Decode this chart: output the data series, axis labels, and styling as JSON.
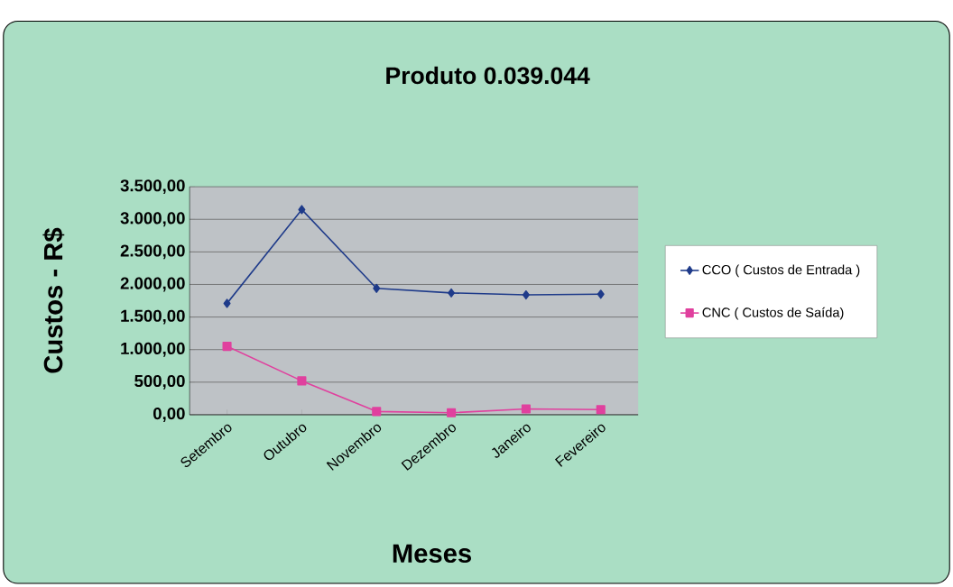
{
  "chart_data": {
    "type": "line",
    "title": "Produto 0.039.044",
    "xlabel": "Meses",
    "ylabel": "Custos - R$",
    "categories": [
      "Setembro",
      "Outubro",
      "Novembro",
      "Dezembro",
      "Janeiro",
      "Fevereiro"
    ],
    "series": [
      {
        "name": "CCO ( Custos de Entrada )",
        "color": "#1f3b8a",
        "marker": "diamond",
        "values": [
          1710,
          3150,
          1940,
          1870,
          1840,
          1850
        ]
      },
      {
        "name": "CNC ( Custos de Saída)",
        "color": "#e0409e",
        "marker": "square",
        "values": [
          1050,
          520,
          50,
          30,
          90,
          80
        ]
      }
    ],
    "ylim": [
      0,
      3500
    ],
    "yticks": [
      {
        "value": 0,
        "label": "0,00"
      },
      {
        "value": 500,
        "label": "500,00"
      },
      {
        "value": 1000,
        "label": "1.000,00"
      },
      {
        "value": 1500,
        "label": "1.500,00"
      },
      {
        "value": 2000,
        "label": "2.000,00"
      },
      {
        "value": 2500,
        "label": "2.500,00"
      },
      {
        "value": 3000,
        "label": "3.000,00"
      },
      {
        "value": 3500,
        "label": "3.500,00"
      }
    ],
    "grid": "y",
    "legend": "right",
    "line_style": "solid"
  }
}
